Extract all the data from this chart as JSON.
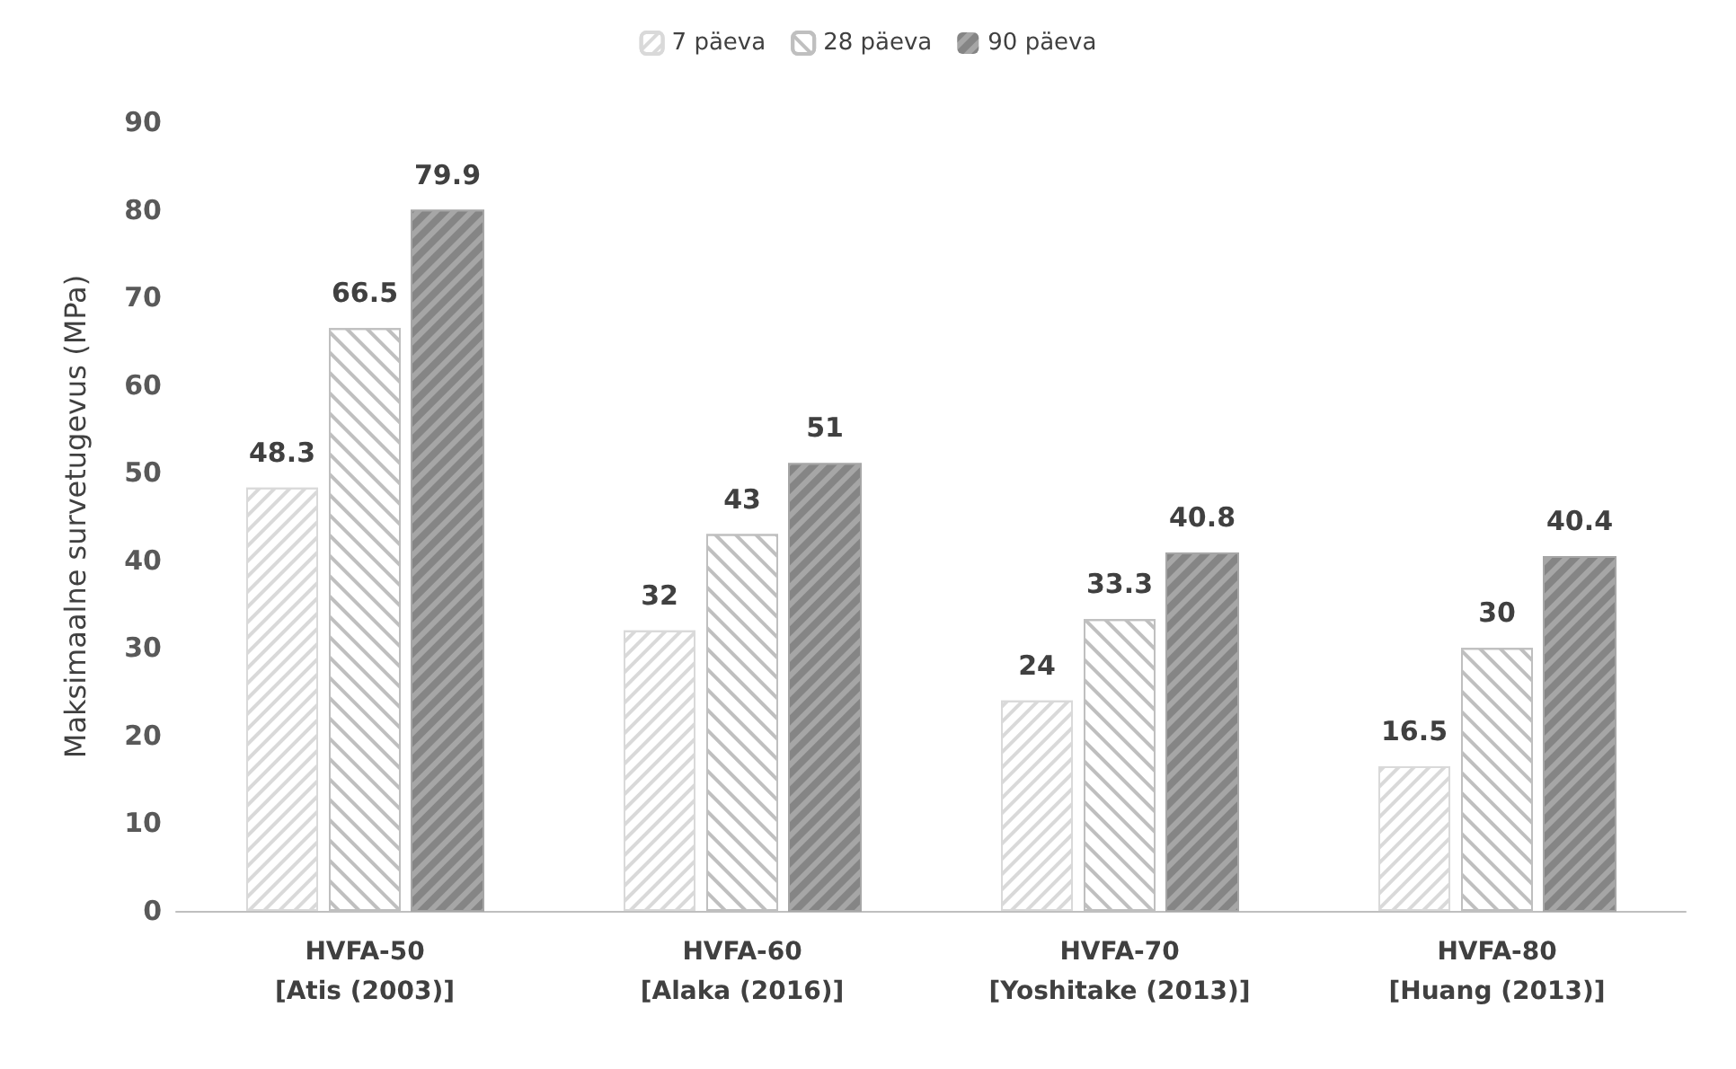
{
  "chart_data": {
    "type": "bar",
    "ylabel": "Maksimaalne survetugevus (MPa)",
    "categories": [
      "HVFA-50\n[Atis (2003)]",
      "HVFA-60\n[Alaka (2016)]",
      "HVFA-70\n[Yoshitake (2013)]",
      "HVFA-80\n[Huang (2013)]"
    ],
    "series": [
      {
        "name": "7 päeva",
        "color": "#d9d9d9",
        "values": [
          48.3,
          32,
          24,
          16.5
        ]
      },
      {
        "name": "28 päeva",
        "color": "#bfbfbf",
        "values": [
          66.5,
          43,
          33.3,
          30
        ]
      },
      {
        "name": "90 päeva",
        "color": "#a6a6a6",
        "values": [
          79.9,
          51,
          40.8,
          40.4
        ]
      }
    ],
    "ylim": [
      0,
      90
    ],
    "yticks": [
      0,
      10,
      20,
      30,
      40,
      50,
      60,
      70,
      80,
      90
    ],
    "grid": false,
    "legend": "top",
    "data_labels": true
  }
}
